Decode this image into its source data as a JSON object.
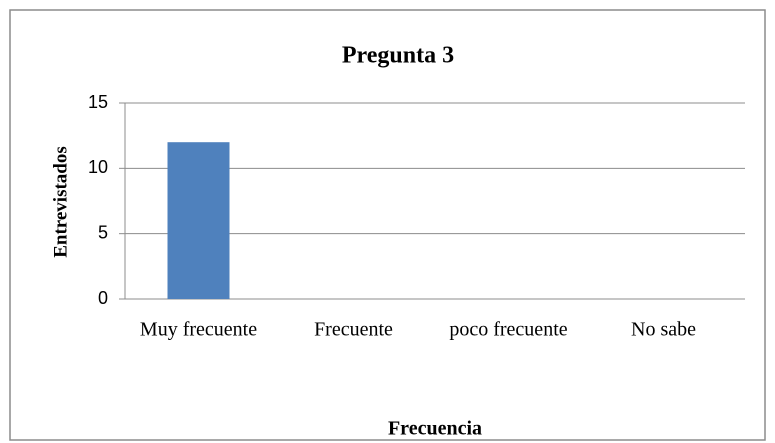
{
  "chart_data": {
    "type": "bar",
    "title": "Pregunta 3",
    "categories": [
      "Muy frecuente",
      "Frecuente",
      "poco frecuente",
      "No sabe"
    ],
    "values": [
      12,
      0,
      0,
      0
    ],
    "color": "#4f81bd",
    "x_label": "Frecuencia",
    "y_label": "Entrevistados",
    "ylim": [
      0,
      15
    ],
    "yticks": [
      0,
      5,
      10,
      15
    ],
    "grid": true
  }
}
